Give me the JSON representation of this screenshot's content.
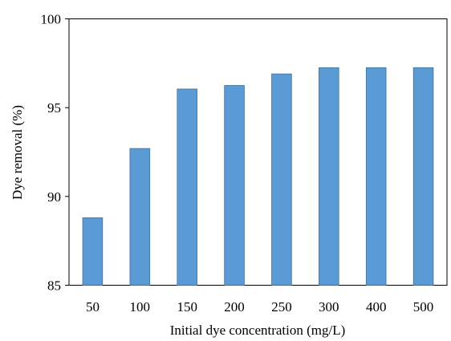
{
  "chart_data": {
    "type": "bar",
    "title": "",
    "xlabel": "Initial dye concentration (mg/L)",
    "ylabel": "Dye removal (%)",
    "categories": [
      "50",
      "100",
      "150",
      "200",
      "250",
      "300",
      "400",
      "500"
    ],
    "values": [
      88.8,
      92.7,
      96.05,
      96.25,
      96.9,
      97.25,
      97.25,
      97.25
    ],
    "ylim": [
      85,
      100
    ],
    "yticks": [
      "85",
      "90",
      "95",
      "100"
    ],
    "grid": false,
    "legend": "none",
    "bar_color": "#5b9bd5",
    "bar_edge_color": "#41719c"
  }
}
